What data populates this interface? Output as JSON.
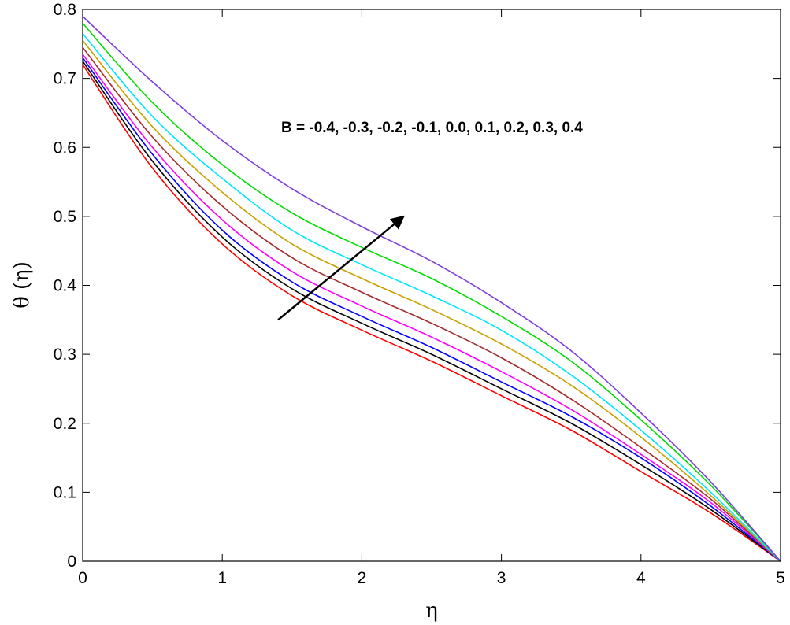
{
  "chart_data": {
    "type": "line",
    "title": "",
    "xlabel": "η",
    "ylabel": "θ (η)",
    "xlim": [
      0,
      5
    ],
    "ylim": [
      0,
      0.8
    ],
    "x_ticks": [
      "0",
      "1",
      "2",
      "3",
      "4",
      "5"
    ],
    "y_ticks": [
      "0",
      "0.1",
      "0.2",
      "0.3",
      "0.4",
      "0.5",
      "0.6",
      "0.7",
      "0.8"
    ],
    "grid": false,
    "legend": "none",
    "annotation": {
      "text": "B = -0.4, -0.3, -0.2, -0.1, 0.0, 0.1, 0.2, 0.3, 0.4",
      "arrow_from": [
        1.4,
        0.35
      ],
      "arrow_to": [
        2.3,
        0.5
      ]
    },
    "x": [
      0,
      0.5,
      1,
      1.5,
      2,
      2.5,
      3,
      3.5,
      4,
      4.5,
      5
    ],
    "series": [
      {
        "color": "#ff0000",
        "values": [
          0.72,
          0.57,
          0.46,
          0.385,
          0.335,
          0.29,
          0.24,
          0.19,
          0.13,
          0.07,
          0.0
        ]
      },
      {
        "color": "#000000",
        "values": [
          0.725,
          0.58,
          0.47,
          0.395,
          0.345,
          0.3,
          0.25,
          0.2,
          0.14,
          0.075,
          0.0
        ]
      },
      {
        "color": "#0000ff",
        "values": [
          0.73,
          0.59,
          0.48,
          0.405,
          0.355,
          0.31,
          0.26,
          0.21,
          0.15,
          0.08,
          0.0
        ]
      },
      {
        "color": "#ff00ff",
        "values": [
          0.735,
          0.6,
          0.495,
          0.42,
          0.37,
          0.325,
          0.275,
          0.22,
          0.155,
          0.085,
          0.0
        ]
      },
      {
        "color": "#a52a2a",
        "values": [
          0.745,
          0.615,
          0.515,
          0.44,
          0.39,
          0.345,
          0.295,
          0.235,
          0.165,
          0.09,
          0.0
        ]
      },
      {
        "color": "#c8a000",
        "values": [
          0.755,
          0.63,
          0.535,
          0.46,
          0.41,
          0.365,
          0.315,
          0.255,
          0.18,
          0.095,
          0.0
        ]
      },
      {
        "color": "#00e5ff",
        "values": [
          0.765,
          0.645,
          0.555,
          0.48,
          0.43,
          0.385,
          0.335,
          0.27,
          0.19,
          0.1,
          0.0
        ]
      },
      {
        "color": "#00dd00",
        "values": [
          0.78,
          0.665,
          0.575,
          0.505,
          0.455,
          0.41,
          0.355,
          0.29,
          0.205,
          0.11,
          0.0
        ]
      },
      {
        "color": "#7f3fe0",
        "values": [
          0.79,
          0.695,
          0.61,
          0.54,
          0.485,
          0.435,
          0.375,
          0.305,
          0.215,
          0.115,
          0.0
        ]
      }
    ]
  }
}
